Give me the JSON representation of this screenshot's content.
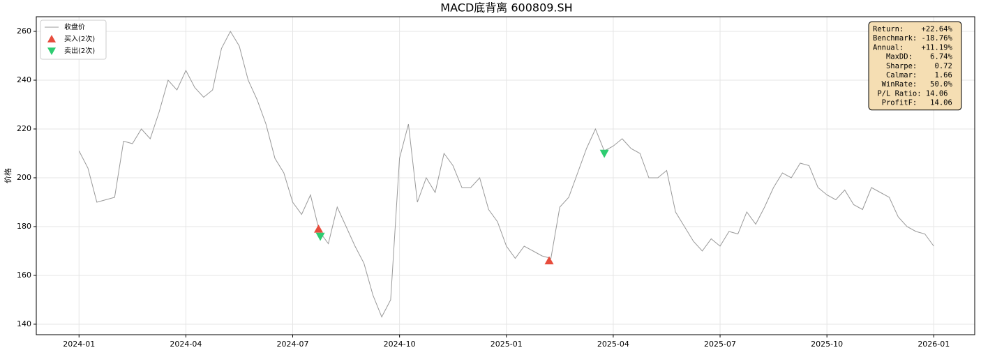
{
  "chart_data": {
    "type": "line",
    "title": "MACD底背离  600809.SH",
    "ylabel": "价格",
    "grid": true,
    "legend": "upper left",
    "xlim": [
      -4.8,
      100.6
    ],
    "xticks": [
      {
        "value": 0,
        "label": "2024-01"
      },
      {
        "value": 12,
        "label": "2024-04"
      },
      {
        "value": 24,
        "label": "2024-07"
      },
      {
        "value": 36,
        "label": "2024-10"
      },
      {
        "value": 48,
        "label": "2025-01"
      },
      {
        "value": 60,
        "label": "2025-04"
      },
      {
        "value": 72,
        "label": "2025-07"
      },
      {
        "value": 84,
        "label": "2025-10"
      },
      {
        "value": 96,
        "label": "2026-01"
      }
    ],
    "ylim": [
      135.7,
      266
    ],
    "yticks": [
      140,
      160,
      180,
      200,
      220,
      240,
      260
    ],
    "series": [
      {
        "name": "收盘价",
        "type": "line",
        "color": "#999999",
        "values": [
          211,
          204,
          190,
          191,
          192,
          215,
          214,
          220,
          216,
          227,
          240,
          236,
          244,
          237,
          233,
          236,
          253,
          260,
          254,
          240,
          232,
          222,
          208,
          202,
          190,
          185,
          193,
          178,
          173,
          188,
          180,
          172,
          165,
          152,
          143,
          150,
          208,
          222,
          190,
          200,
          194,
          210,
          205,
          196,
          196,
          200,
          187,
          182,
          172,
          167,
          172,
          170,
          168,
          167,
          188,
          192,
          202,
          212,
          220,
          211,
          213,
          216,
          212,
          210,
          200,
          200,
          203,
          186,
          180,
          174,
          170,
          175,
          172,
          178,
          177,
          186,
          181,
          188,
          196,
          202,
          200,
          206,
          205,
          196,
          193,
          191,
          195,
          189,
          187,
          196,
          194,
          192,
          184,
          180,
          178,
          177,
          172
        ]
      },
      {
        "name": "买入(2次)",
        "type": "marker-up",
        "color": "#e74c3c",
        "x": [
          26.9,
          52.8
        ],
        "values": [
          179,
          166
        ]
      },
      {
        "name": "卖出(2次)",
        "type": "marker-down",
        "color": "#2ecc71",
        "x": [
          27.1,
          59.0
        ],
        "values": [
          176,
          210
        ]
      }
    ],
    "stats": [
      "Return:    +22.64%",
      "Benchmark: -18.76%",
      "Annual:    +11.19%",
      "   MaxDD:    6.74%",
      "   Sharpe:    0.72",
      "   Calmar:    1.66",
      "  WinRate:   50.0%",
      " P/L Ratio: 14.06",
      "  ProfitF:   14.06"
    ]
  }
}
